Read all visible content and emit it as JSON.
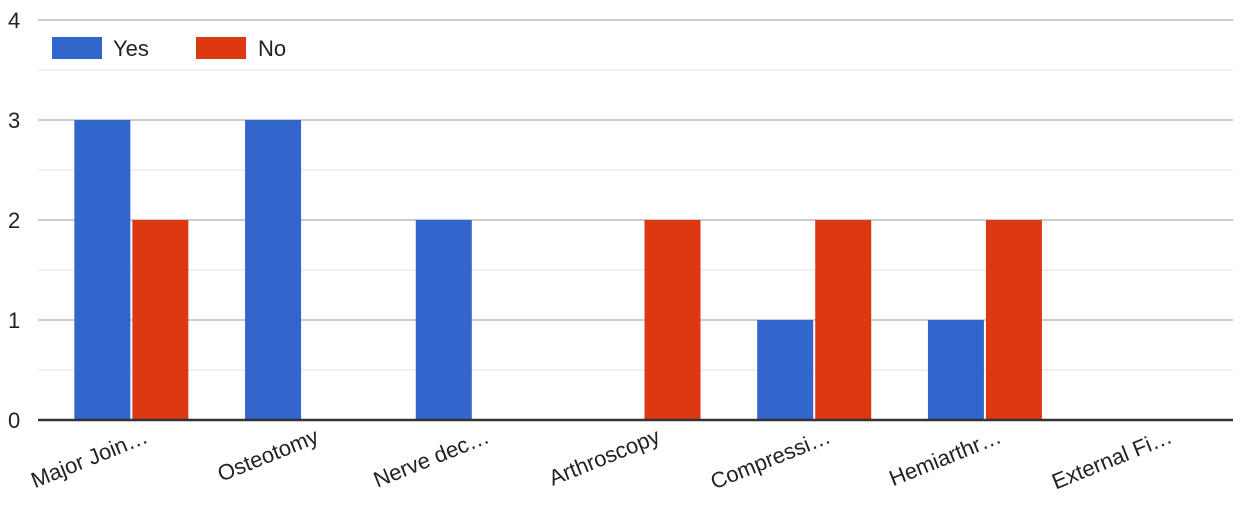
{
  "chart_data": {
    "type": "bar",
    "categories": [
      "Major Join…",
      "Osteotomy",
      "Nerve dec…",
      "Arthroscopy",
      "Compressi…",
      "Hemiarthr…",
      "External Fi…"
    ],
    "series": [
      {
        "name": "Yes",
        "color": "#3366cc",
        "values": [
          3,
          3,
          2,
          0,
          1,
          1,
          0
        ]
      },
      {
        "name": "No",
        "color": "#dc3912",
        "values": [
          2,
          0,
          0,
          2,
          2,
          2,
          0
        ]
      }
    ],
    "y_ticks": [
      "0",
      "1",
      "2",
      "3",
      "4"
    ],
    "ylim": [
      0,
      4
    ],
    "grid": true,
    "minor_gridlines": true,
    "legend_position": "top-left",
    "title": "",
    "xlabel": "",
    "ylabel": ""
  }
}
